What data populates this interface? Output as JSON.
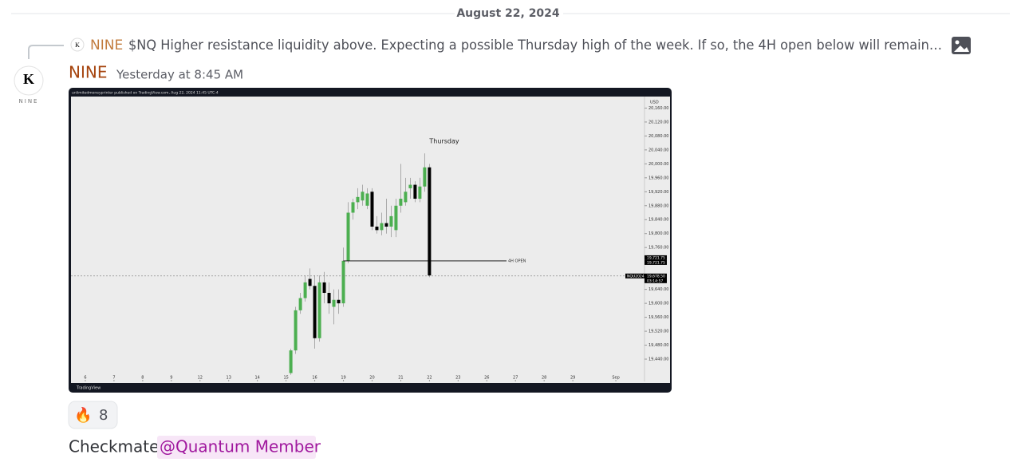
{
  "date_divider": "August 22, 2024",
  "reply": {
    "author": "NINE",
    "content": "$NQ   Higher resistance liquidity above. Expecting a possible Thursday high of the week. If so, the 4H open below will remain…"
  },
  "message": {
    "avatar_caption": "NINE",
    "author": "NINE",
    "timestamp": "Yesterday at 8:45 AM",
    "reactions": [
      {
        "emoji": "🔥",
        "count": 8
      }
    ],
    "text": "Checkmate",
    "mention": "@Quantum Member"
  },
  "chart_data": {
    "type": "candlestick",
    "header": "unlimitedmoneyprinter published on TradingView.com, Aug 22, 2024 11:45 UTC-4",
    "brand": "TradingView",
    "currency": "USD",
    "annotation": "Thursday",
    "level_label": "4H OPEN",
    "symbol": "NQU2024",
    "timer": "03:14:57",
    "level": {
      "value": 19721.75,
      "label": "19,721.75"
    },
    "last": {
      "value": 19678.5,
      "label": "19,678.50"
    },
    "up_color": "#4caf50",
    "down_color": "#000000",
    "x": [
      172,
      176,
      180,
      184,
      188,
      192,
      196,
      200,
      204,
      208,
      212,
      216,
      220,
      224,
      228,
      232,
      236,
      240,
      244,
      248,
      252,
      256,
      260,
      264,
      268,
      272,
      276,
      280,
      284,
      288
    ],
    "open": [
      19400,
      19465,
      19580,
      19615,
      19670,
      19650,
      19500,
      19660,
      19630,
      19590,
      19610,
      19600,
      19722,
      19860,
      19890,
      19895,
      19880,
      19920,
      19820,
      19810,
      19830,
      19820,
      19810,
      19880,
      19890,
      19930,
      19940,
      19900,
      19935,
      19990
    ],
    "high": [
      19470,
      19590,
      19630,
      19680,
      19700,
      19680,
      19680,
      19690,
      19660,
      19640,
      19640,
      19760,
      19890,
      19900,
      19930,
      19940,
      19930,
      19930,
      19850,
      19860,
      19900,
      19880,
      19900,
      20000,
      19960,
      19960,
      19950,
      19960,
      20030,
      20000
    ],
    "low": [
      19395,
      19455,
      19570,
      19605,
      19640,
      19470,
      19490,
      19600,
      19570,
      19540,
      19570,
      19590,
      19715,
      19840,
      19870,
      19880,
      19870,
      19810,
      19800,
      19795,
      19800,
      19790,
      19790,
      19860,
      19880,
      19900,
      19890,
      19890,
      19920,
      19675
    ],
    "close": [
      19465,
      19580,
      19615,
      19660,
      19650,
      19500,
      19660,
      19630,
      19600,
      19610,
      19600,
      19722,
      19860,
      19890,
      19905,
      19920,
      19915,
      19820,
      19810,
      19830,
      19820,
      19850,
      19880,
      19900,
      19920,
      19940,
      19900,
      19935,
      19990,
      19680
    ],
    "xlim": [
      -12,
      468
    ],
    "ylim": [
      19376,
      20193
    ],
    "xticks": [
      {
        "value": 0,
        "label": "6"
      },
      {
        "value": 24,
        "label": "7"
      },
      {
        "value": 48,
        "label": "8"
      },
      {
        "value": 72,
        "label": "9"
      },
      {
        "value": 96,
        "label": "12"
      },
      {
        "value": 120,
        "label": "13"
      },
      {
        "value": 144,
        "label": "14"
      },
      {
        "value": 168,
        "label": "15"
      },
      {
        "value": 192,
        "label": "16"
      },
      {
        "value": 216,
        "label": "19"
      },
      {
        "value": 240,
        "label": "20"
      },
      {
        "value": 264,
        "label": "21"
      },
      {
        "value": 288,
        "label": "22"
      },
      {
        "value": 312,
        "label": "23"
      },
      {
        "value": 336,
        "label": "26"
      },
      {
        "value": 360,
        "label": "27"
      },
      {
        "value": 384,
        "label": "28"
      },
      {
        "value": 408,
        "label": "29"
      },
      {
        "value": 444,
        "label": "Sep"
      }
    ],
    "yticks": [
      {
        "value": 20160,
        "label": "20,160.00"
      },
      {
        "value": 20120,
        "label": "20,120.00"
      },
      {
        "value": 20080,
        "label": "20,080.00"
      },
      {
        "value": 20040,
        "label": "20,040.00"
      },
      {
        "value": 20000,
        "label": "20,000.00"
      },
      {
        "value": 19960,
        "label": "19,960.00"
      },
      {
        "value": 19920,
        "label": "19,920.00"
      },
      {
        "value": 19880,
        "label": "19,880.00"
      },
      {
        "value": 19840,
        "label": "19,840.00"
      },
      {
        "value": 19800,
        "label": "19,800.00"
      },
      {
        "value": 19760,
        "label": "19,760.00"
      },
      {
        "value": 19640,
        "label": "19,640.00"
      },
      {
        "value": 19600,
        "label": "19,600.00"
      },
      {
        "value": 19560,
        "label": "19,560.00"
      },
      {
        "value": 19520,
        "label": "19,520.00"
      },
      {
        "value": 19480,
        "label": "19,480.00"
      },
      {
        "value": 19440,
        "label": "19,440.00"
      }
    ]
  }
}
